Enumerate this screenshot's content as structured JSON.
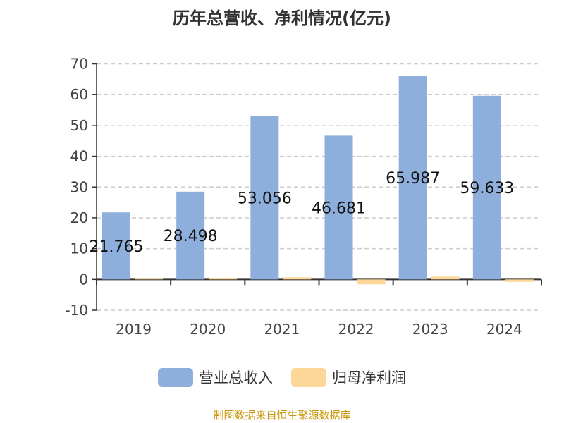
{
  "title": "历年总营收、净利情况(亿元)",
  "source": "制图数据来自恒生聚源数据库",
  "chart_data": {
    "type": "bar",
    "title": "历年总营收、净利情况(亿元)",
    "categories": [
      "2019",
      "2020",
      "2021",
      "2022",
      "2023",
      "2024"
    ],
    "ylim": [
      -10,
      70
    ],
    "yticks": [
      -10,
      0,
      10,
      20,
      30,
      40,
      50,
      60,
      70
    ],
    "grid": true,
    "legend_position": "bottom",
    "series": [
      {
        "name": "营业总收入",
        "color": "#8eaedb",
        "values": [
          21.765,
          28.498,
          53.056,
          46.681,
          65.987,
          59.633
        ],
        "labels": [
          "21.765",
          "28.498",
          "53.056",
          "46.681",
          "65.987",
          "59.633"
        ]
      },
      {
        "name": "归母净利润",
        "color": "#fdd797",
        "values": [
          0.2,
          0.3,
          0.7,
          -1.6,
          0.9,
          -0.8
        ]
      }
    ]
  }
}
